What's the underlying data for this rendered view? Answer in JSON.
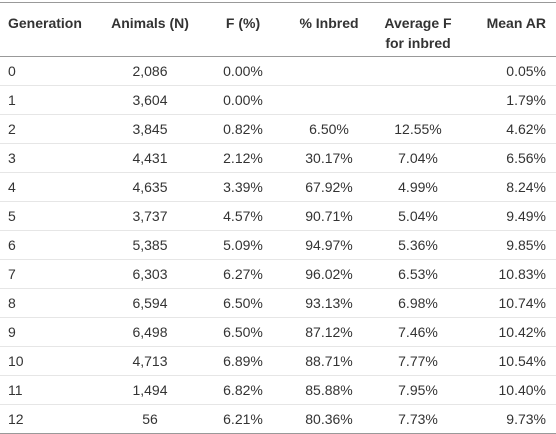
{
  "table": {
    "header": [
      "Generation",
      "Animals (N)",
      "F (%)",
      "% Inbred",
      "Average F for inbred",
      "Mean AR"
    ],
    "rows": [
      [
        "0",
        "2,086",
        "0.00%",
        null,
        null,
        "0.05%"
      ],
      [
        "1",
        "3,604",
        "0.00%",
        null,
        null,
        "1.79%"
      ],
      [
        "2",
        "3,845",
        "0.82%",
        "6.50%",
        "12.55%",
        "4.62%"
      ],
      [
        "3",
        "4,431",
        "2.12%",
        "30.17%",
        "7.04%",
        "6.56%"
      ],
      [
        "4",
        "4,635",
        "3.39%",
        "67.92%",
        "4.99%",
        "8.24%"
      ],
      [
        "5",
        "3,737",
        "4.57%",
        "90.71%",
        "5.04%",
        "9.49%"
      ],
      [
        "6",
        "5,385",
        "5.09%",
        "94.97%",
        "5.36%",
        "9.85%"
      ],
      [
        "7",
        "6,303",
        "6.27%",
        "96.02%",
        "6.53%",
        "10.83%"
      ],
      [
        "8",
        "6,594",
        "6.50%",
        "93.13%",
        "6.98%",
        "10.74%"
      ],
      [
        "9",
        "6,498",
        "6.50%",
        "87.12%",
        "7.46%",
        "10.42%"
      ],
      [
        "10",
        "4,713",
        "6.89%",
        "88.71%",
        "7.77%",
        "10.54%"
      ],
      [
        "11",
        "1,494",
        "6.82%",
        "85.88%",
        "7.95%",
        "10.40%"
      ],
      [
        "12",
        "56",
        "6.21%",
        "80.36%",
        "7.73%",
        "9.73%"
      ]
    ]
  }
}
